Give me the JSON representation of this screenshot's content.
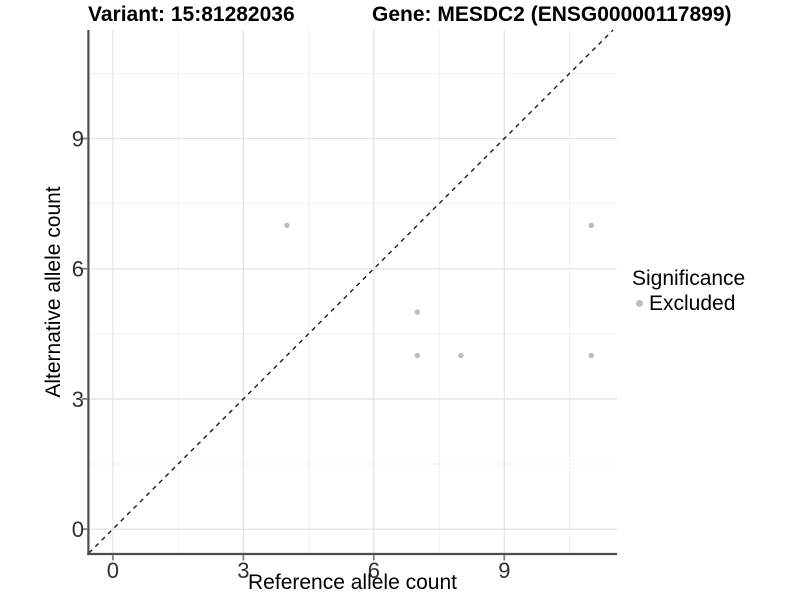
{
  "header": {
    "variant_title": "Variant: 15:81282036",
    "gene_title": "Gene: MESDC2 (ENSG00000117899)"
  },
  "legend": {
    "title": "Significance",
    "entries": [
      {
        "label": "Excluded",
        "color": "#bdbdbd"
      }
    ]
  },
  "chart_data": {
    "type": "scatter",
    "title_left": "Variant: 15:81282036",
    "title_right": "Gene: MESDC2 (ENSG00000117899)",
    "xlabel": "Reference allele count",
    "ylabel": "Alternative allele count",
    "xlim": [
      -0.56,
      11.59
    ],
    "ylim": [
      -0.55,
      11.5
    ],
    "x_major_ticks": [
      0,
      3,
      6,
      9
    ],
    "y_major_ticks": [
      0,
      3,
      6,
      9
    ],
    "x_minor_ticks": [
      1.5,
      4.5,
      7.5,
      10.5
    ],
    "y_minor_ticks": [
      1.5,
      4.5,
      7.5,
      10.5
    ],
    "grid": "on",
    "legend_position": "right",
    "legend_title": "Significance",
    "series": [
      {
        "name": "Excluded",
        "color": "#bdbdbd",
        "marker": "circle",
        "points": [
          [
            4,
            7
          ],
          [
            7,
            4
          ],
          [
            7,
            5
          ],
          [
            8,
            4
          ],
          [
            11,
            4
          ],
          [
            11,
            7
          ]
        ]
      }
    ],
    "reference_line": {
      "kind": "identity",
      "slope": 1,
      "intercept": 0,
      "style": "dashed",
      "color": "#1a1a1a"
    }
  },
  "colors": {
    "background": "#ffffff",
    "grid_major": "#e4e4e4",
    "grid_minor": "#efefef",
    "axis_line": "#4d4d4d",
    "tick_mark": "#808080",
    "tick_label": "#303030",
    "text": "#000000",
    "point": "#bdbdbd"
  }
}
